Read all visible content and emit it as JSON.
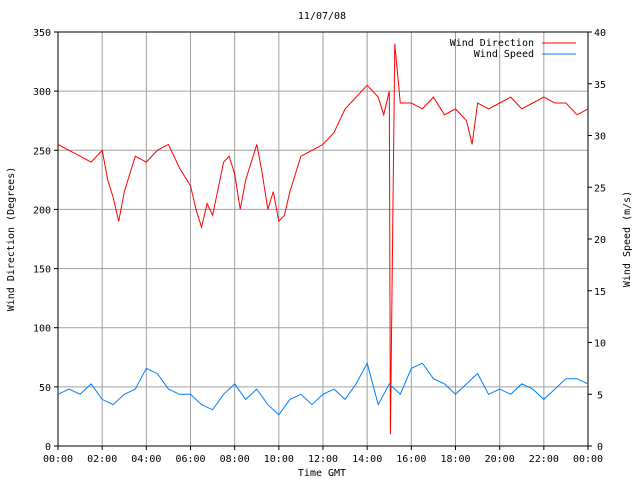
{
  "chart_data": {
    "type": "line",
    "title": "11/07/08",
    "xlabel": "Time GMT",
    "ylabel_left": "Wind Direction (Degrees)",
    "ylabel_right": "Wind Speed (m/s)",
    "x_ticks": [
      "00:00",
      "02:00",
      "04:00",
      "06:00",
      "08:00",
      "10:00",
      "12:00",
      "14:00",
      "16:00",
      "18:00",
      "20:00",
      "22:00",
      "00:00"
    ],
    "x_range_hours": [
      0,
      24
    ],
    "ylim_left": [
      0,
      350
    ],
    "y_ticks_left": [
      "0",
      "50",
      "100",
      "150",
      "200",
      "250",
      "300",
      "350"
    ],
    "ylim_right": [
      0,
      40
    ],
    "y_ticks_right": [
      "0",
      "5",
      "10",
      "15",
      "20",
      "25",
      "30",
      "35",
      "40"
    ],
    "grid": true,
    "legend_position": "top-right",
    "series": [
      {
        "name": "Wind Direction",
        "axis": "left",
        "color": "#ff0000",
        "x": [
          0,
          0.5,
          1,
          1.5,
          2,
          2.25,
          2.5,
          2.75,
          3,
          3.5,
          4,
          4.5,
          5,
          5.5,
          6,
          6.25,
          6.5,
          6.75,
          7,
          7.5,
          7.75,
          8,
          8.25,
          8.5,
          9,
          9.25,
          9.5,
          9.75,
          10,
          10.25,
          10.5,
          11,
          11.5,
          12,
          12.5,
          13,
          13.5,
          14,
          14.5,
          14.75,
          15,
          15.05,
          15.25,
          15.5,
          16,
          16.5,
          17,
          17.5,
          18,
          18.5,
          18.75,
          19,
          19.5,
          20,
          20.5,
          21,
          21.5,
          22,
          22.5,
          23,
          23.5,
          24
        ],
        "y": [
          255,
          250,
          245,
          240,
          250,
          225,
          210,
          190,
          215,
          245,
          240,
          250,
          255,
          235,
          220,
          200,
          185,
          205,
          195,
          240,
          245,
          230,
          200,
          225,
          255,
          230,
          200,
          215,
          190,
          195,
          215,
          245,
          250,
          255,
          265,
          285,
          295,
          305,
          295,
          280,
          300,
          10,
          340,
          290,
          290,
          285,
          295,
          280,
          285,
          275,
          255,
          290,
          285,
          290,
          295,
          285,
          290,
          295,
          290,
          290,
          280,
          285
        ]
      },
      {
        "name": "Wind Speed",
        "axis": "right",
        "color": "#0080ff",
        "x": [
          0,
          0.5,
          1,
          1.5,
          2,
          2.5,
          3,
          3.5,
          4,
          4.5,
          5,
          5.5,
          6,
          6.5,
          7,
          7.5,
          8,
          8.5,
          9,
          9.5,
          10,
          10.5,
          11,
          11.5,
          12,
          12.5,
          13,
          13.5,
          14,
          14.5,
          15,
          15.5,
          16,
          16.5,
          17,
          17.5,
          18,
          18.5,
          19,
          19.5,
          20,
          20.5,
          21,
          21.5,
          22,
          22.5,
          23,
          23.5,
          24
        ],
        "y": [
          5,
          5.5,
          5,
          6,
          4.5,
          4,
          5,
          5.5,
          7.5,
          7,
          5.5,
          5,
          5,
          4,
          3.5,
          5,
          6,
          4.5,
          5.5,
          4,
          3,
          4.5,
          5,
          4,
          5,
          5.5,
          4.5,
          6,
          8,
          4,
          6,
          5,
          7.5,
          8,
          6.5,
          6,
          5,
          6,
          7,
          5,
          5.5,
          5,
          6,
          5.5,
          4.5,
          5.5,
          6.5,
          6.5,
          6
        ]
      }
    ]
  }
}
